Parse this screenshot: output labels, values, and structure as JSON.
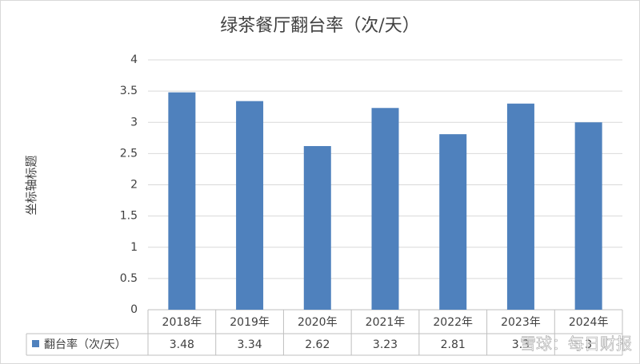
{
  "chart_data": {
    "type": "bar",
    "title": "绿茶餐厅翻台率（次/天）",
    "y_label": "坐标轴标题",
    "categories": [
      "2018年",
      "2019年",
      "2020年",
      "2021年",
      "2022年",
      "2023年",
      "2024年"
    ],
    "series": [
      {
        "name": "翻台率（次/天）",
        "color": "#4f81bd",
        "values": [
          3.48,
          3.34,
          2.62,
          3.23,
          2.81,
          3.3,
          3
        ]
      }
    ],
    "ylim": [
      0,
      4
    ],
    "yticks": [
      0,
      0.5,
      1,
      1.5,
      2,
      2.5,
      3,
      3.5,
      4
    ],
    "grid": true,
    "data_table": true,
    "watermark": "雪球：每日财报"
  }
}
